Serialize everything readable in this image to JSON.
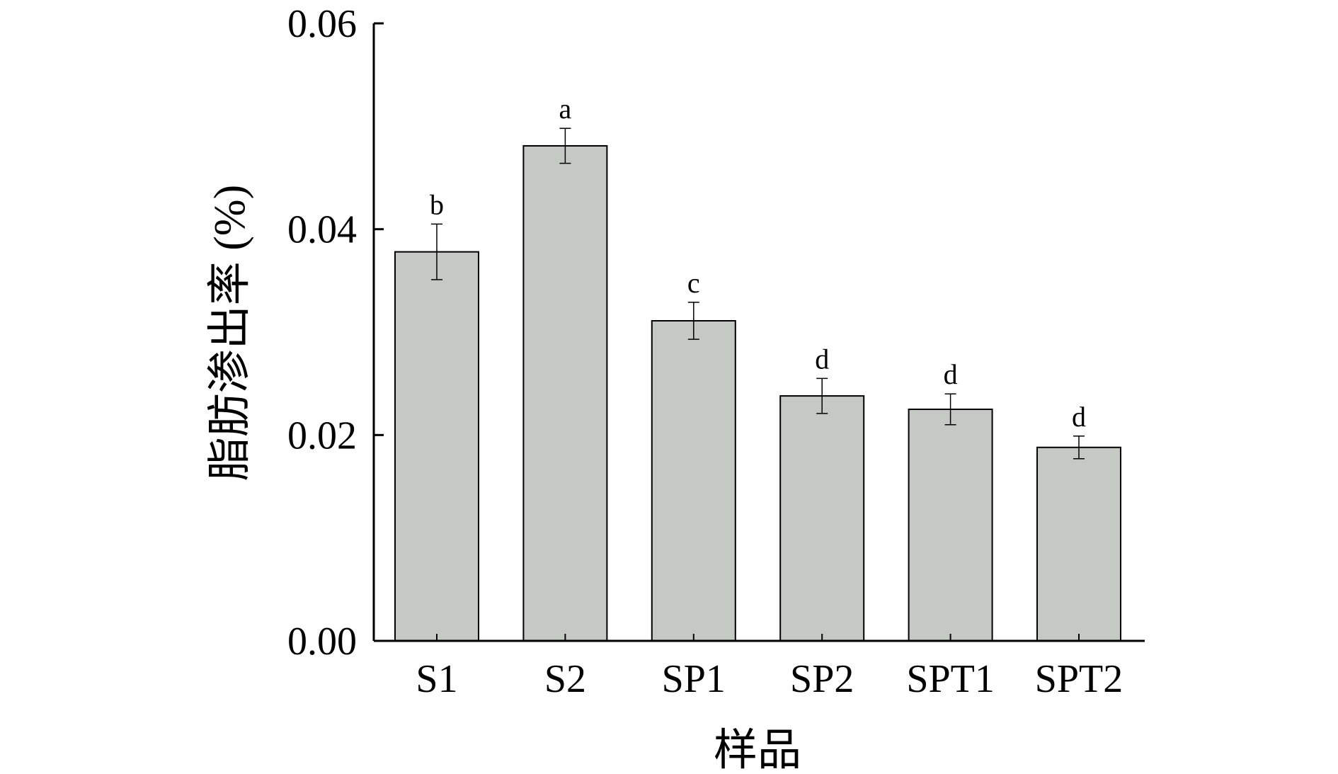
{
  "chart_data": {
    "type": "bar",
    "categories": [
      "S1",
      "S2",
      "SP1",
      "SP2",
      "SPT1",
      "SPT2"
    ],
    "values": [
      0.0378,
      0.0481,
      0.0311,
      0.0238,
      0.0225,
      0.0188
    ],
    "errors": [
      0.0027,
      0.0017,
      0.0018,
      0.0017,
      0.0015,
      0.0011
    ],
    "significance": [
      "b",
      "a",
      "c",
      "d",
      "d",
      "d"
    ],
    "xlabel": "样品",
    "ylabel": "脂肪渗出率 (%)",
    "ylim": [
      0,
      0.06
    ],
    "yticks": [
      "0.00",
      "0.02",
      "0.04",
      "0.06"
    ],
    "bar_color": "#c5c9c4",
    "grid": false,
    "legend": "none"
  }
}
